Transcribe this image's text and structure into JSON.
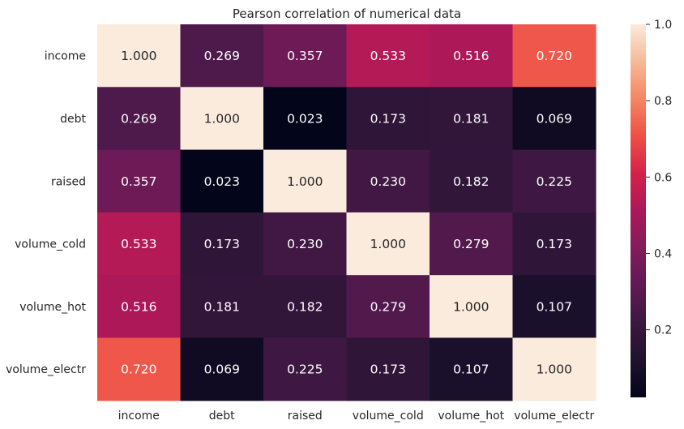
{
  "chart_data": {
    "type": "heatmap",
    "title": "Pearson correlation of numerical data",
    "xlabel": "",
    "ylabel": "",
    "rows": [
      "income",
      "debt",
      "raised",
      "volume_cold",
      "volume_hot",
      "volume_electr"
    ],
    "columns": [
      "income",
      "debt",
      "raised",
      "volume_cold",
      "volume_hot",
      "volume_electr"
    ],
    "values": [
      [
        1.0,
        0.269,
        0.357,
        0.533,
        0.516,
        0.72
      ],
      [
        0.269,
        1.0,
        0.023,
        0.173,
        0.181,
        0.069
      ],
      [
        0.357,
        0.023,
        1.0,
        0.23,
        0.182,
        0.225
      ],
      [
        0.533,
        0.173,
        0.23,
        1.0,
        0.279,
        0.173
      ],
      [
        0.516,
        0.181,
        0.182,
        0.279,
        1.0,
        0.107
      ],
      [
        0.72,
        0.069,
        0.225,
        0.173,
        0.107,
        1.0
      ]
    ],
    "value_format": "3 decimals",
    "color_scale": {
      "name": "rocket",
      "vmin": 0.023,
      "vmax": 1.0,
      "ticks": [
        "0.2",
        "0.4",
        "0.6",
        "0.8",
        "1.0"
      ],
      "tick_values": [
        0.2,
        0.4,
        0.6,
        0.8,
        1.0
      ]
    },
    "colorbar_position": "right",
    "grid": false
  }
}
